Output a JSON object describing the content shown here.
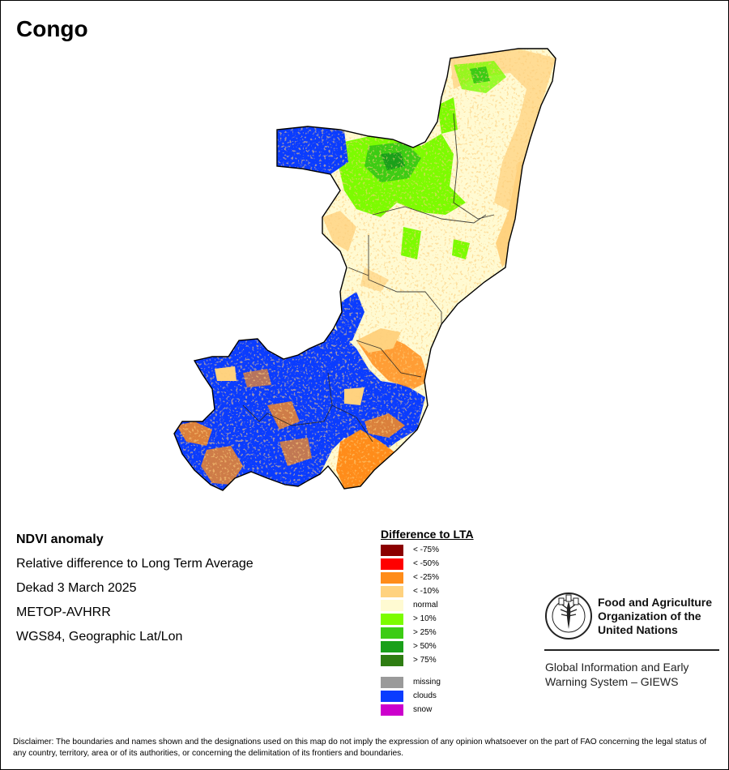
{
  "map": {
    "title": "Congo"
  },
  "info": {
    "product": "NDVI anomaly",
    "description": "Relative difference to Long Term Average",
    "period": "Dekad 3 March 2025",
    "sensor": "METOP-AVHRR",
    "projection": "WGS84, Geographic Lat/Lon"
  },
  "legend": {
    "title": "Difference to LTA",
    "classes": [
      {
        "label": "< -75%",
        "color": "#8b0000"
      },
      {
        "label": "< -50%",
        "color": "#ff0000"
      },
      {
        "label": "< -25%",
        "color": "#ff8c1a"
      },
      {
        "label": "< -10%",
        "color": "#ffd27f"
      },
      {
        "label": "normal",
        "color": "#fffad2"
      },
      {
        "label": "> 10%",
        "color": "#7cfc00"
      },
      {
        "label": "> 25%",
        "color": "#3ccc14"
      },
      {
        "label": "> 50%",
        "color": "#1aa01a"
      },
      {
        "label": "> 75%",
        "color": "#2e7d12"
      }
    ],
    "extra": [
      {
        "label": "missing",
        "color": "#9a9a9a"
      },
      {
        "label": "clouds",
        "color": "#0a3cff"
      },
      {
        "label": "snow",
        "color": "#cc00cc"
      }
    ]
  },
  "organization": {
    "name": "Food and Agriculture Organization of the United Nations",
    "system": "Global Information and Early Warning System – GIEWS"
  },
  "disclaimer": "Disclaimer: The boundaries and names shown and the designations used on this map do not imply the expression of any opinion whatsoever on the part of FAO concerning the legal status of any country, territory, area or of its authorities, or concerning the delimitation of its frontiers and boundaries."
}
